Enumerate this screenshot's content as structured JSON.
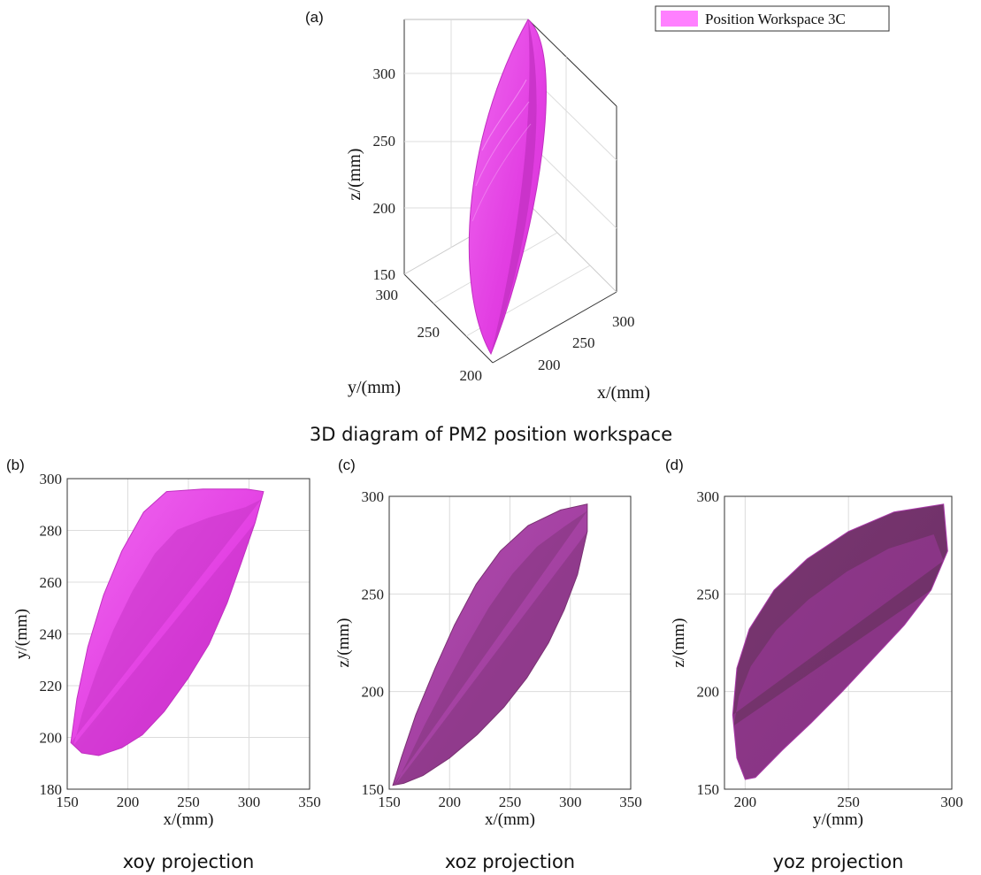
{
  "colors": {
    "main": "#e83ae8",
    "dark": "#a02fa0",
    "darker": "#7a3672",
    "light": "#f56ef5",
    "legend_fill": "#ff80ff"
  },
  "chart_data": [
    {
      "panel": "(a)",
      "type": "scatter3d",
      "caption": "3D diagram of PM2 position workspace",
      "legend": [
        "Position Workspace 3C"
      ],
      "legend_position": "top-right",
      "xlabel": "x/(mm)",
      "ylabel": "y/(mm)",
      "zlabel": "z/(mm)",
      "x_ticks": [
        "200",
        "250",
        "300"
      ],
      "y_ticks": [
        "200",
        "250",
        "300"
      ],
      "z_ticks": [
        "150",
        "200",
        "250",
        "300"
      ],
      "xlim": [
        170,
        320
      ],
      "ylim": [
        190,
        300
      ],
      "zlim": [
        150,
        300
      ],
      "grid": true,
      "series": [
        {
          "name": "Position Workspace 3C",
          "shape": "ellipsoid",
          "x_range": [
            155,
            315
          ],
          "y_range": [
            195,
            297
          ],
          "z_range": [
            152,
            297
          ]
        }
      ]
    },
    {
      "panel": "(b)",
      "type": "area",
      "caption": "xoy projection",
      "xlabel": "x/(mm)",
      "ylabel": "y/(mm)",
      "x_ticks": [
        "150",
        "200",
        "250",
        "300",
        "350"
      ],
      "y_ticks": [
        "180",
        "200",
        "220",
        "240",
        "260",
        "280",
        "300"
      ],
      "xlim": [
        150,
        350
      ],
      "ylim": [
        180,
        300
      ],
      "grid": true,
      "points": [
        [
          153,
          198
        ],
        [
          158,
          215
        ],
        [
          167,
          235
        ],
        [
          180,
          255
        ],
        [
          195,
          272
        ],
        [
          213,
          287
        ],
        [
          232,
          295
        ],
        [
          262,
          296
        ],
        [
          298,
          296
        ],
        [
          312,
          295
        ],
        [
          305,
          283
        ],
        [
          294,
          268
        ],
        [
          282,
          252
        ],
        [
          267,
          236
        ],
        [
          250,
          223
        ],
        [
          230,
          210
        ],
        [
          212,
          201
        ],
        [
          195,
          196
        ],
        [
          176,
          193
        ],
        [
          162,
          194
        ]
      ]
    },
    {
      "panel": "(c)",
      "type": "area",
      "caption": "xoz projection",
      "xlabel": "x/(mm)",
      "ylabel": "z/(mm)",
      "x_ticks": [
        "150",
        "200",
        "250",
        "300",
        "350"
      ],
      "y_ticks": [
        "150",
        "200",
        "250",
        "300"
      ],
      "xlim": [
        150,
        350
      ],
      "ylim": [
        150,
        300
      ],
      "grid": true,
      "points": [
        [
          153,
          152
        ],
        [
          160,
          166
        ],
        [
          172,
          188
        ],
        [
          188,
          212
        ],
        [
          204,
          234
        ],
        [
          222,
          255
        ],
        [
          242,
          272
        ],
        [
          265,
          285
        ],
        [
          292,
          293
        ],
        [
          314,
          296
        ],
        [
          314,
          282
        ],
        [
          306,
          260
        ],
        [
          295,
          242
        ],
        [
          282,
          225
        ],
        [
          264,
          207
        ],
        [
          245,
          192
        ],
        [
          223,
          178
        ],
        [
          200,
          166
        ],
        [
          178,
          157
        ],
        [
          162,
          153
        ]
      ]
    },
    {
      "panel": "(d)",
      "type": "area",
      "caption": "yoz projection",
      "xlabel": "y/(mm)",
      "ylabel": "z/(mm)",
      "x_ticks": [
        "200",
        "250",
        "300"
      ],
      "y_ticks": [
        "150",
        "200",
        "250",
        "300"
      ],
      "xlim": [
        190,
        300
      ],
      "ylim": [
        150,
        300
      ],
      "grid": true,
      "points": [
        [
          194,
          188
        ],
        [
          196,
          212
        ],
        [
          202,
          232
        ],
        [
          214,
          252
        ],
        [
          230,
          268
        ],
        [
          250,
          282
        ],
        [
          272,
          292
        ],
        [
          296,
          296
        ],
        [
          298,
          272
        ],
        [
          290,
          252
        ],
        [
          277,
          234
        ],
        [
          262,
          217
        ],
        [
          247,
          200
        ],
        [
          232,
          184
        ],
        [
          218,
          170
        ],
        [
          205,
          156
        ],
        [
          200,
          155
        ],
        [
          196,
          166
        ]
      ]
    }
  ]
}
